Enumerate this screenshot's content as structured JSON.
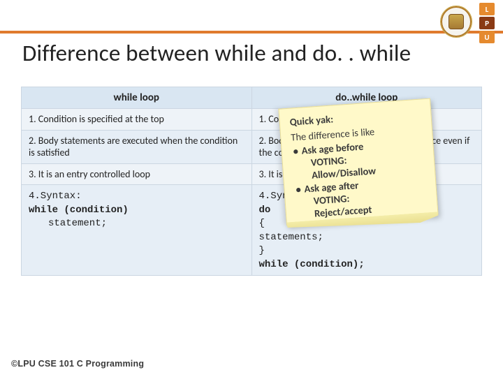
{
  "colors": {
    "accent_rule": "#e07b2e",
    "table_header_bg": "#d9e6f2",
    "table_cell_bg_a": "#eef3f8",
    "table_cell_bg_b": "#e6eef6",
    "table_border": "#cbd6e2",
    "note_bg": "#fff9c9",
    "note_edge": "#e9de9a"
  },
  "logo": {
    "letters": {
      "a": "L",
      "b": "P",
      "c": "U"
    }
  },
  "title": "Difference between while and do. . while",
  "table": {
    "headers": {
      "left": "while loop",
      "right": "do..while loop"
    },
    "rows": [
      {
        "left": "1. Condition is specified at the top",
        "right": "1. Condition is specified at the bottom"
      },
      {
        "left": "2. Body statements are executed when the condition is satisfied",
        "right": "2. Body statements are executed at least once even if the condition evaluates false"
      },
      {
        "left": "3. It is an entry controlled loop",
        "right": "3. It is an exit controlled loop"
      }
    ],
    "syntax": {
      "left": {
        "l1": "4.Syntax:",
        "l2": "while (condition)",
        "l3": "statement;"
      },
      "right": {
        "l1": "4.Syntax:",
        "l2": "do",
        "l3": "{",
        "l4": "statements;",
        "l5": "}",
        "l6": "while (condition);"
      }
    }
  },
  "note": {
    "title": "Quick yak:",
    "line": "The difference is like",
    "items": {
      "a": "Ask age before",
      "a2": "VOTING:",
      "a3": "Allow/Disallow",
      "b": "Ask age after",
      "b2": "VOTING:",
      "b3": "Reject/accept"
    }
  },
  "footer": "©LPU CSE 101 C Programming"
}
